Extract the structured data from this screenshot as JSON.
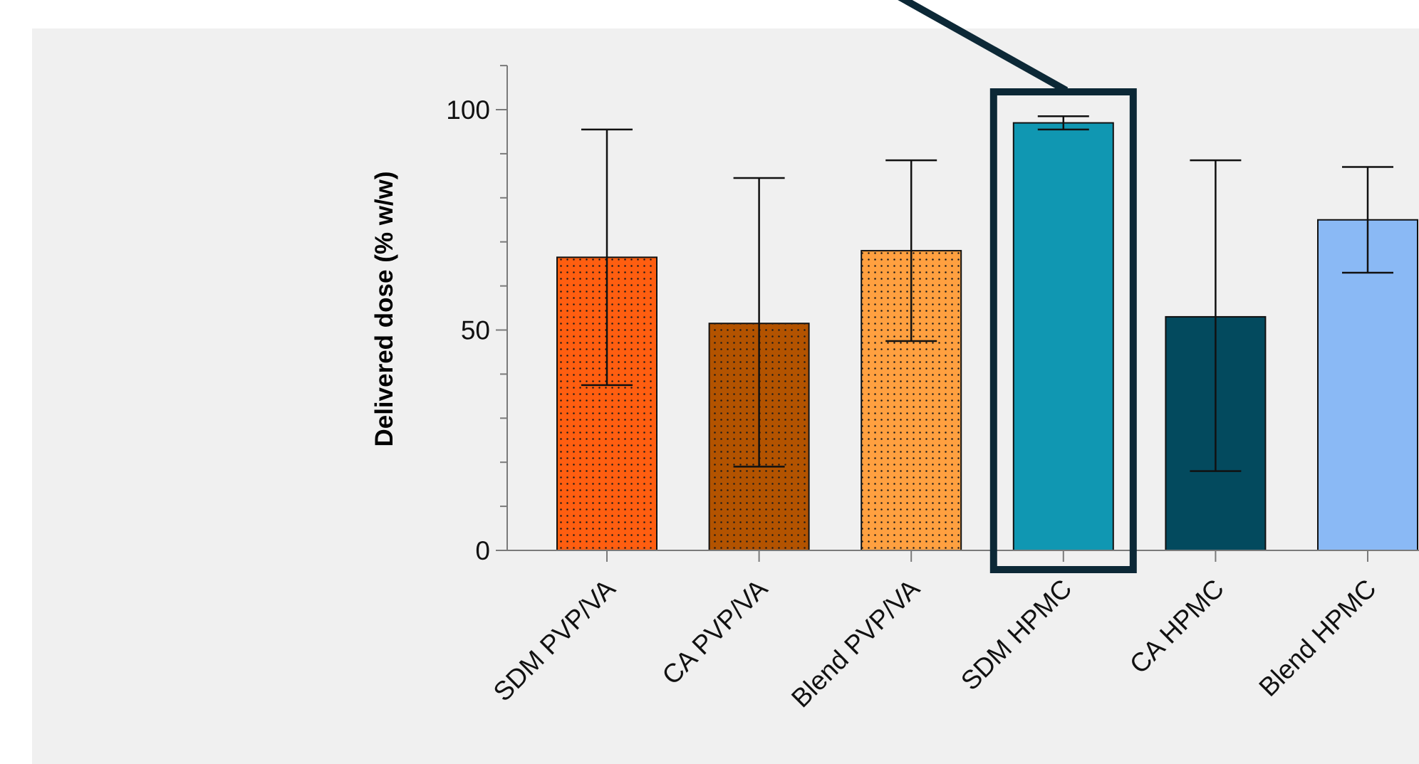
{
  "chart_data": {
    "type": "bar",
    "title": "",
    "xlabel": "",
    "ylabel": "Delivered dose (% w/w)",
    "ylim": [
      0,
      110
    ],
    "yticks_major": [
      0,
      50,
      100
    ],
    "yticks_minor_step": 10,
    "grid": false,
    "categories": [
      "SDM PVP/VA",
      "CA PVP/VA",
      "Blend PVP/VA",
      "SDM HPMC",
      "CA HPMC",
      "Blend HPMC"
    ],
    "values": [
      66.5,
      51.5,
      68,
      97,
      53,
      75
    ],
    "error_low": [
      37.5,
      19,
      47.5,
      95.5,
      18,
      63
    ],
    "error_high": [
      95.5,
      84.5,
      88.5,
      98.5,
      88.5,
      87
    ],
    "colors": [
      "#ff5e10",
      "#b35300",
      "#ffa040",
      "#1097b2",
      "#034a5e",
      "#8ab9f5"
    ],
    "patterned": [
      true,
      true,
      true,
      false,
      false,
      false
    ],
    "highlighted_category": "SDM HPMC",
    "highlight_color": "#0c2836",
    "plot_background": "#f0f0f0"
  }
}
